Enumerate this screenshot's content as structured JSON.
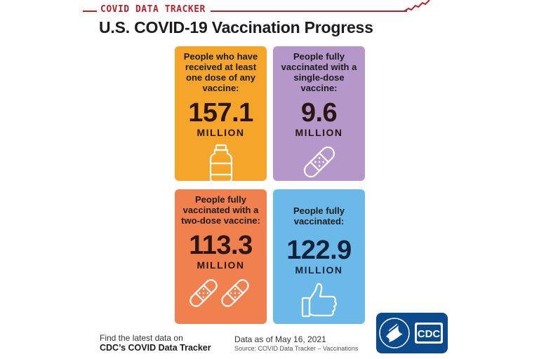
{
  "header": {
    "tracker_label": "COVID DATA TRACKER",
    "title": "U.S. COVID-19 Vaccination Progress",
    "accent_color": "#b5232c"
  },
  "cards": [
    {
      "description": "People who have received at least one dose of any vaccine:",
      "value": "157.1",
      "unit": "MILLION",
      "icon": "vaccine-vial-icon",
      "color": "#f4a52a"
    },
    {
      "description": "People fully vaccinated with a single-dose vaccine:",
      "value": "9.6",
      "unit": "MILLION",
      "icon": "bandage-icon",
      "color": "#b597c9"
    },
    {
      "description": "People fully vaccinated with a two-dose vaccine:",
      "value": "113.3",
      "unit": "MILLION",
      "icon": "two-bandages-icon",
      "color": "#f1804f"
    },
    {
      "description": "People fully vaccinated:",
      "value": "122.9",
      "unit": "MILLION",
      "icon": "thumbs-up-icon",
      "color": "#6bb9e8"
    }
  ],
  "footer": {
    "find_text": "Find the latest data on",
    "link_text": "CDC’s COVID Data Tracker",
    "date_text": "Data as of May 16, 2021",
    "source_text": "Source: COVID Data Tracker – Vaccinations"
  },
  "logo": {
    "text": "CDC",
    "color": "#0b4a8c"
  }
}
